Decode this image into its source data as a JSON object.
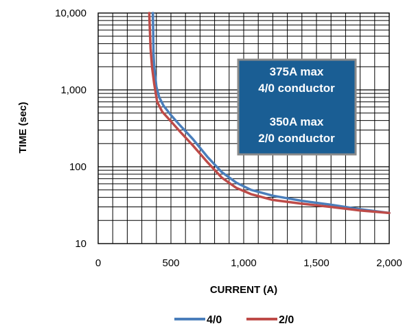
{
  "chart_data": {
    "type": "line",
    "title": "",
    "xlabel": "CURRENT (A)",
    "ylabel": "TIME (sec)",
    "x_scale": "linear",
    "y_scale": "log",
    "xlim": [
      0,
      2000
    ],
    "ylim": [
      10,
      10000
    ],
    "x_ticks": [
      0,
      500,
      1000,
      1500,
      2000
    ],
    "x_tick_labels": [
      "0",
      "500",
      "1,000",
      "1,500",
      "2,000"
    ],
    "y_ticks": [
      10,
      100,
      1000,
      10000
    ],
    "y_tick_labels": [
      "10",
      "100",
      "1,000",
      "10,000"
    ],
    "grid": true,
    "legend_position": "bottom",
    "series": [
      {
        "name": "4/0",
        "color": "#4a7ebb",
        "x": [
          376,
          378,
          380,
          385,
          400,
          420,
          450,
          500,
          560,
          650,
          750,
          850,
          950,
          1050,
          1200,
          1400,
          1600,
          1800,
          2000
        ],
        "y": [
          10000,
          6000,
          3000,
          2000,
          1100,
          800,
          620,
          470,
          350,
          230,
          135,
          85,
          62,
          50,
          42,
          36,
          32,
          28,
          25
        ]
      },
      {
        "name": "2/0",
        "color": "#be4b48",
        "x": [
          351,
          355,
          360,
          370,
          385,
          405,
          440,
          500,
          560,
          650,
          750,
          850,
          950,
          1050,
          1200,
          1400,
          1600,
          1800,
          2000
        ],
        "y": [
          10000,
          6000,
          3500,
          2000,
          1200,
          700,
          520,
          390,
          290,
          190,
          115,
          72,
          53,
          44,
          37,
          33,
          30,
          27,
          25
        ]
      }
    ],
    "annotation": {
      "lines": [
        "375A max",
        "4/0 conductor",
        "",
        "350A max",
        "2/0 conductor"
      ],
      "background": "#1a5e94",
      "border": "#8a8a8a"
    }
  }
}
